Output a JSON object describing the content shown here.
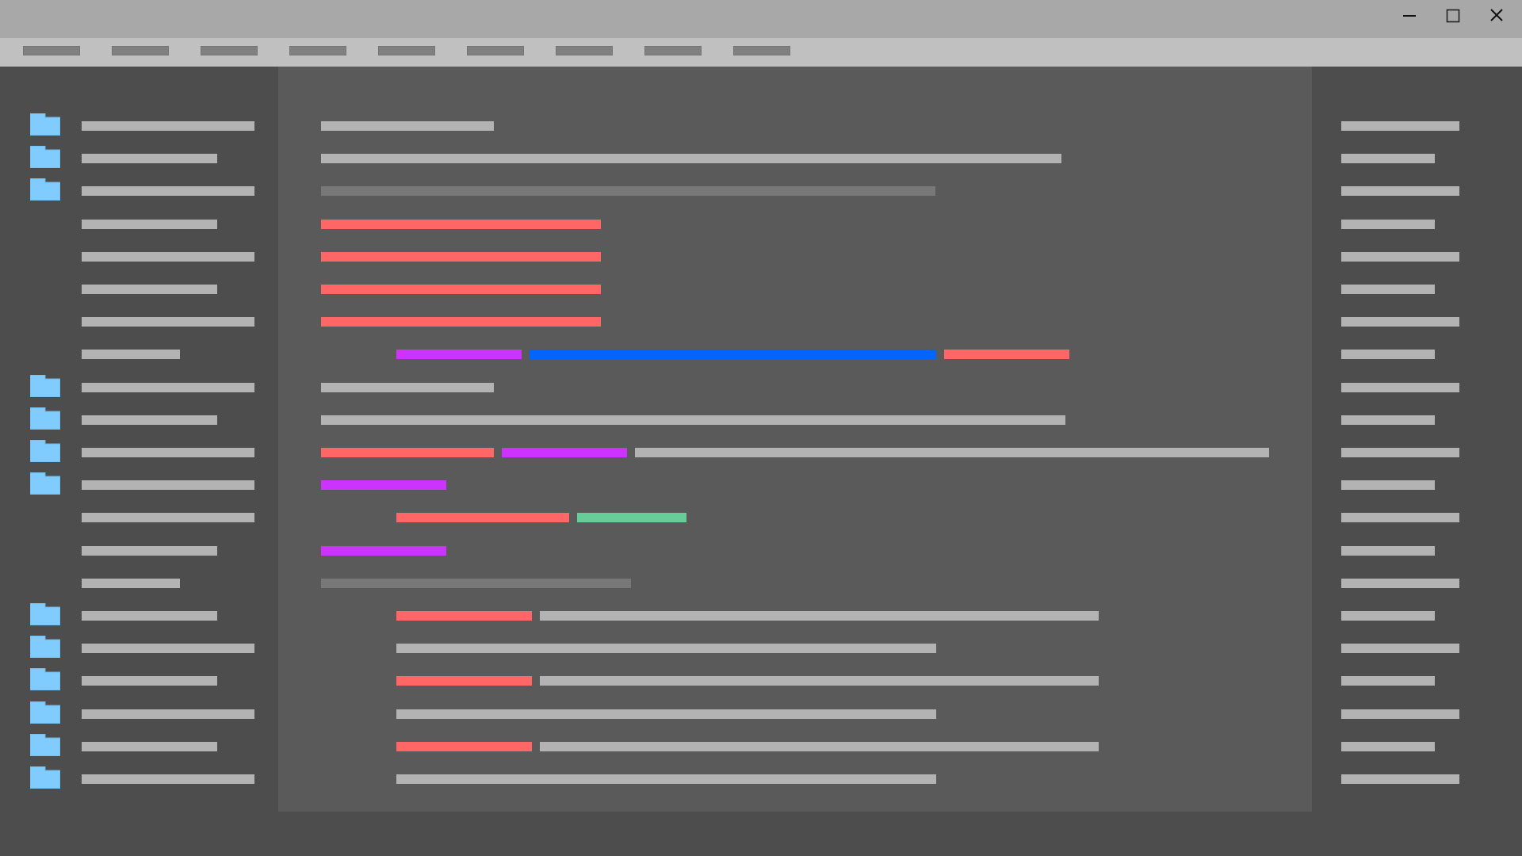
{
  "window": {
    "controls": [
      {
        "name": "minimize-button",
        "icon": "minimize-icon"
      },
      {
        "name": "maximize-button",
        "icon": "maximize-icon"
      },
      {
        "name": "close-button",
        "icon": "close-icon"
      }
    ]
  },
  "colors": {
    "titlebar": "#a8a8a8",
    "menubar": "#c0c0c0",
    "menu_placeholder": "#808080",
    "panel_bg": "#4d4d4d",
    "editor_bg": "#5a5a5a",
    "text_placeholder": "#b3b3b3",
    "comment": "#787878",
    "red": "#ff6666",
    "purple": "#cc33ff",
    "blue": "#0066ff",
    "green": "#66cc99",
    "folder": "#80ccff"
  },
  "menu": {
    "item_count": 9
  },
  "file_tree": {
    "folder_icon": "folder-icon",
    "rows": [
      {
        "folder": true,
        "size": "long"
      },
      {
        "folder": true,
        "size": "medium"
      },
      {
        "folder": true,
        "size": "long"
      },
      {
        "folder": false,
        "size": "medium"
      },
      {
        "folder": false,
        "size": "long"
      },
      {
        "folder": false,
        "size": "medium"
      },
      {
        "folder": false,
        "size": "long"
      },
      {
        "folder": false,
        "size": "short"
      },
      {
        "folder": true,
        "size": "long"
      },
      {
        "folder": true,
        "size": "medium"
      },
      {
        "folder": true,
        "size": "long"
      },
      {
        "folder": true,
        "size": "long"
      },
      {
        "folder": false,
        "size": "long"
      },
      {
        "folder": false,
        "size": "medium"
      },
      {
        "folder": false,
        "size": "short"
      },
      {
        "folder": true,
        "size": "medium"
      },
      {
        "folder": true,
        "size": "long"
      },
      {
        "folder": true,
        "size": "medium"
      },
      {
        "folder": true,
        "size": "long"
      },
      {
        "folder": true,
        "size": "medium"
      },
      {
        "folder": true,
        "size": "long"
      }
    ]
  },
  "editor": {
    "lines": [
      {
        "indent": 0,
        "tokens": [
          "text"
        ]
      },
      {
        "indent": 0,
        "tokens": [
          "text"
        ]
      },
      {
        "indent": 0,
        "tokens": [
          "comment"
        ]
      },
      {
        "indent": 0,
        "tokens": [
          "red"
        ]
      },
      {
        "indent": 0,
        "tokens": [
          "red"
        ]
      },
      {
        "indent": 0,
        "tokens": [
          "red"
        ]
      },
      {
        "indent": 0,
        "tokens": [
          "red"
        ]
      },
      {
        "indent": 1,
        "tokens": [
          "purple",
          "blue",
          "red"
        ]
      },
      {
        "indent": 0,
        "tokens": [
          "text"
        ]
      },
      {
        "indent": 0,
        "tokens": [
          "text"
        ]
      },
      {
        "indent": 0,
        "tokens": [
          "red",
          "purple",
          "text"
        ]
      },
      {
        "indent": 0,
        "tokens": [
          "purple"
        ]
      },
      {
        "indent": 1,
        "tokens": [
          "red",
          "green"
        ]
      },
      {
        "indent": 0,
        "tokens": [
          "purple"
        ]
      },
      {
        "indent": 0,
        "tokens": [
          "comment"
        ]
      },
      {
        "indent": 1,
        "tokens": [
          "red",
          "text"
        ]
      },
      {
        "indent": 1,
        "tokens": [
          "text"
        ]
      },
      {
        "indent": 1,
        "tokens": [
          "red",
          "text"
        ]
      },
      {
        "indent": 1,
        "tokens": [
          "text"
        ]
      },
      {
        "indent": 1,
        "tokens": [
          "red",
          "text"
        ]
      },
      {
        "indent": 1,
        "tokens": [
          "text"
        ]
      }
    ]
  },
  "outline": {
    "rows": [
      "long",
      "short",
      "long",
      "short",
      "long",
      "short",
      "long",
      "short",
      "long",
      "short",
      "long",
      "short",
      "long",
      "short",
      "long",
      "short",
      "long",
      "short",
      "long",
      "short",
      "long"
    ]
  }
}
